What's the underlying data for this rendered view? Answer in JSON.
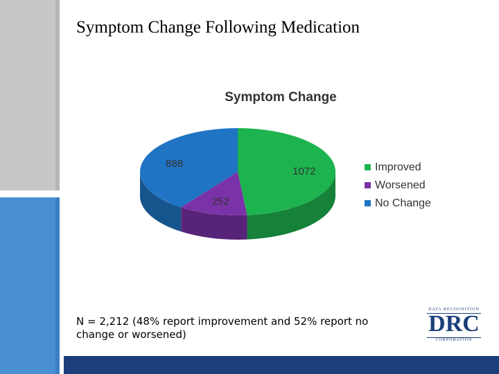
{
  "slide": {
    "title": "Symptom Change Following Medication",
    "footnote": "N = 2,212 (48% report improvement and 52% report no change or worsened)"
  },
  "logo": {
    "top_text": "DATA RECOGNITION",
    "main_text": "DRC",
    "bottom_text": "CORPORATION"
  },
  "chart_data": {
    "type": "pie",
    "title": "Symptom Change",
    "labels": [
      "Improved",
      "Worsened",
      "No Change"
    ],
    "values": [
      1072,
      252,
      888
    ],
    "colors": [
      "#1db34f",
      "#7a32a8",
      "#1f74c4"
    ],
    "legend": "right"
  }
}
